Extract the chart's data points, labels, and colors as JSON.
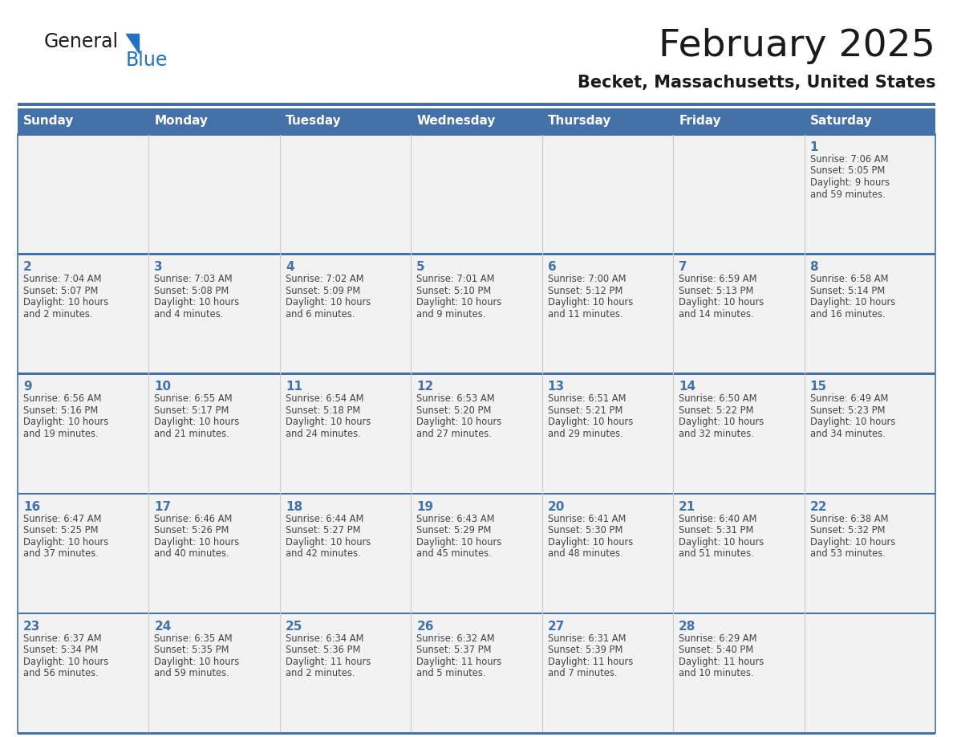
{
  "title": "February 2025",
  "subtitle": "Becket, Massachusetts, United States",
  "days_of_week": [
    "Sunday",
    "Monday",
    "Tuesday",
    "Wednesday",
    "Thursday",
    "Friday",
    "Saturday"
  ],
  "header_bg": "#4472A8",
  "header_text": "#FFFFFF",
  "row_bg": "#F2F2F2",
  "cell_border_color": "#4472A8",
  "cell_divider_color": "#CCCCCC",
  "day_number_color": "#4472A8",
  "info_text_color": "#444444",
  "title_color": "#1a1a1a",
  "subtitle_color": "#1a1a1a",
  "logo_general_color": "#1a1a1a",
  "logo_blue_color": "#2272C3",
  "calendar_data": [
    [
      {
        "day": null,
        "info": ""
      },
      {
        "day": null,
        "info": ""
      },
      {
        "day": null,
        "info": ""
      },
      {
        "day": null,
        "info": ""
      },
      {
        "day": null,
        "info": ""
      },
      {
        "day": null,
        "info": ""
      },
      {
        "day": 1,
        "info": "Sunrise: 7:06 AM\nSunset: 5:05 PM\nDaylight: 9 hours\nand 59 minutes."
      }
    ],
    [
      {
        "day": 2,
        "info": "Sunrise: 7:04 AM\nSunset: 5:07 PM\nDaylight: 10 hours\nand 2 minutes."
      },
      {
        "day": 3,
        "info": "Sunrise: 7:03 AM\nSunset: 5:08 PM\nDaylight: 10 hours\nand 4 minutes."
      },
      {
        "day": 4,
        "info": "Sunrise: 7:02 AM\nSunset: 5:09 PM\nDaylight: 10 hours\nand 6 minutes."
      },
      {
        "day": 5,
        "info": "Sunrise: 7:01 AM\nSunset: 5:10 PM\nDaylight: 10 hours\nand 9 minutes."
      },
      {
        "day": 6,
        "info": "Sunrise: 7:00 AM\nSunset: 5:12 PM\nDaylight: 10 hours\nand 11 minutes."
      },
      {
        "day": 7,
        "info": "Sunrise: 6:59 AM\nSunset: 5:13 PM\nDaylight: 10 hours\nand 14 minutes."
      },
      {
        "day": 8,
        "info": "Sunrise: 6:58 AM\nSunset: 5:14 PM\nDaylight: 10 hours\nand 16 minutes."
      }
    ],
    [
      {
        "day": 9,
        "info": "Sunrise: 6:56 AM\nSunset: 5:16 PM\nDaylight: 10 hours\nand 19 minutes."
      },
      {
        "day": 10,
        "info": "Sunrise: 6:55 AM\nSunset: 5:17 PM\nDaylight: 10 hours\nand 21 minutes."
      },
      {
        "day": 11,
        "info": "Sunrise: 6:54 AM\nSunset: 5:18 PM\nDaylight: 10 hours\nand 24 minutes."
      },
      {
        "day": 12,
        "info": "Sunrise: 6:53 AM\nSunset: 5:20 PM\nDaylight: 10 hours\nand 27 minutes."
      },
      {
        "day": 13,
        "info": "Sunrise: 6:51 AM\nSunset: 5:21 PM\nDaylight: 10 hours\nand 29 minutes."
      },
      {
        "day": 14,
        "info": "Sunrise: 6:50 AM\nSunset: 5:22 PM\nDaylight: 10 hours\nand 32 minutes."
      },
      {
        "day": 15,
        "info": "Sunrise: 6:49 AM\nSunset: 5:23 PM\nDaylight: 10 hours\nand 34 minutes."
      }
    ],
    [
      {
        "day": 16,
        "info": "Sunrise: 6:47 AM\nSunset: 5:25 PM\nDaylight: 10 hours\nand 37 minutes."
      },
      {
        "day": 17,
        "info": "Sunrise: 6:46 AM\nSunset: 5:26 PM\nDaylight: 10 hours\nand 40 minutes."
      },
      {
        "day": 18,
        "info": "Sunrise: 6:44 AM\nSunset: 5:27 PM\nDaylight: 10 hours\nand 42 minutes."
      },
      {
        "day": 19,
        "info": "Sunrise: 6:43 AM\nSunset: 5:29 PM\nDaylight: 10 hours\nand 45 minutes."
      },
      {
        "day": 20,
        "info": "Sunrise: 6:41 AM\nSunset: 5:30 PM\nDaylight: 10 hours\nand 48 minutes."
      },
      {
        "day": 21,
        "info": "Sunrise: 6:40 AM\nSunset: 5:31 PM\nDaylight: 10 hours\nand 51 minutes."
      },
      {
        "day": 22,
        "info": "Sunrise: 6:38 AM\nSunset: 5:32 PM\nDaylight: 10 hours\nand 53 minutes."
      }
    ],
    [
      {
        "day": 23,
        "info": "Sunrise: 6:37 AM\nSunset: 5:34 PM\nDaylight: 10 hours\nand 56 minutes."
      },
      {
        "day": 24,
        "info": "Sunrise: 6:35 AM\nSunset: 5:35 PM\nDaylight: 10 hours\nand 59 minutes."
      },
      {
        "day": 25,
        "info": "Sunrise: 6:34 AM\nSunset: 5:36 PM\nDaylight: 11 hours\nand 2 minutes."
      },
      {
        "day": 26,
        "info": "Sunrise: 6:32 AM\nSunset: 5:37 PM\nDaylight: 11 hours\nand 5 minutes."
      },
      {
        "day": 27,
        "info": "Sunrise: 6:31 AM\nSunset: 5:39 PM\nDaylight: 11 hours\nand 7 minutes."
      },
      {
        "day": 28,
        "info": "Sunrise: 6:29 AM\nSunset: 5:40 PM\nDaylight: 11 hours\nand 10 minutes."
      },
      {
        "day": null,
        "info": ""
      }
    ]
  ]
}
